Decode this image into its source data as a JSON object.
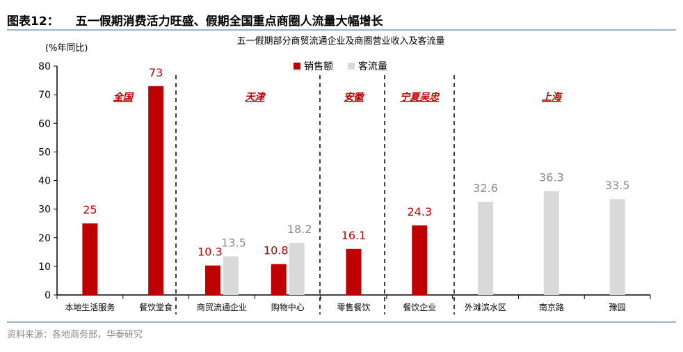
{
  "header": {
    "figure_no": "图表12：",
    "title": "五一假期消费活力旺盛、假期全国重点商圈人流量大幅增长"
  },
  "source": "资料来源：各地商务部，华泰研究",
  "colors": {
    "sales": "#c00000",
    "traffic": "#d9d9d9",
    "region_label": "#c00000"
  },
  "chart_data": {
    "type": "bar",
    "title": "五一假期部分商贸流通企业及商圈营业收入及客流量",
    "ylabel": "(%年同比)",
    "ylim": [
      0,
      80
    ],
    "yticks": [
      0,
      10,
      20,
      30,
      40,
      50,
      60,
      70,
      80
    ],
    "grid": false,
    "legend": "top-center",
    "categories": [
      "本地生活服务",
      "餐饮堂食",
      "商贸流通企业",
      "购物中心",
      "零售餐饮",
      "餐饮企业",
      "外滩滨水区",
      "南京路",
      "豫园"
    ],
    "series": [
      {
        "name": "销售额",
        "values": [
          25,
          73,
          10.3,
          10.8,
          16.1,
          24.3,
          null,
          null,
          null
        ]
      },
      {
        "name": "客流量",
        "values": [
          null,
          null,
          13.5,
          18.2,
          null,
          null,
          32.6,
          36.3,
          33.5
        ]
      }
    ],
    "regions": [
      {
        "label": "全国",
        "categories": [
          0,
          1
        ]
      },
      {
        "label": "天津",
        "categories": [
          2,
          3
        ]
      },
      {
        "label": "安徽",
        "categories": [
          4
        ]
      },
      {
        "label": "宁夏吴忠",
        "categories": [
          5
        ]
      },
      {
        "label": "上海",
        "categories": [
          6,
          7,
          8
        ]
      }
    ]
  }
}
